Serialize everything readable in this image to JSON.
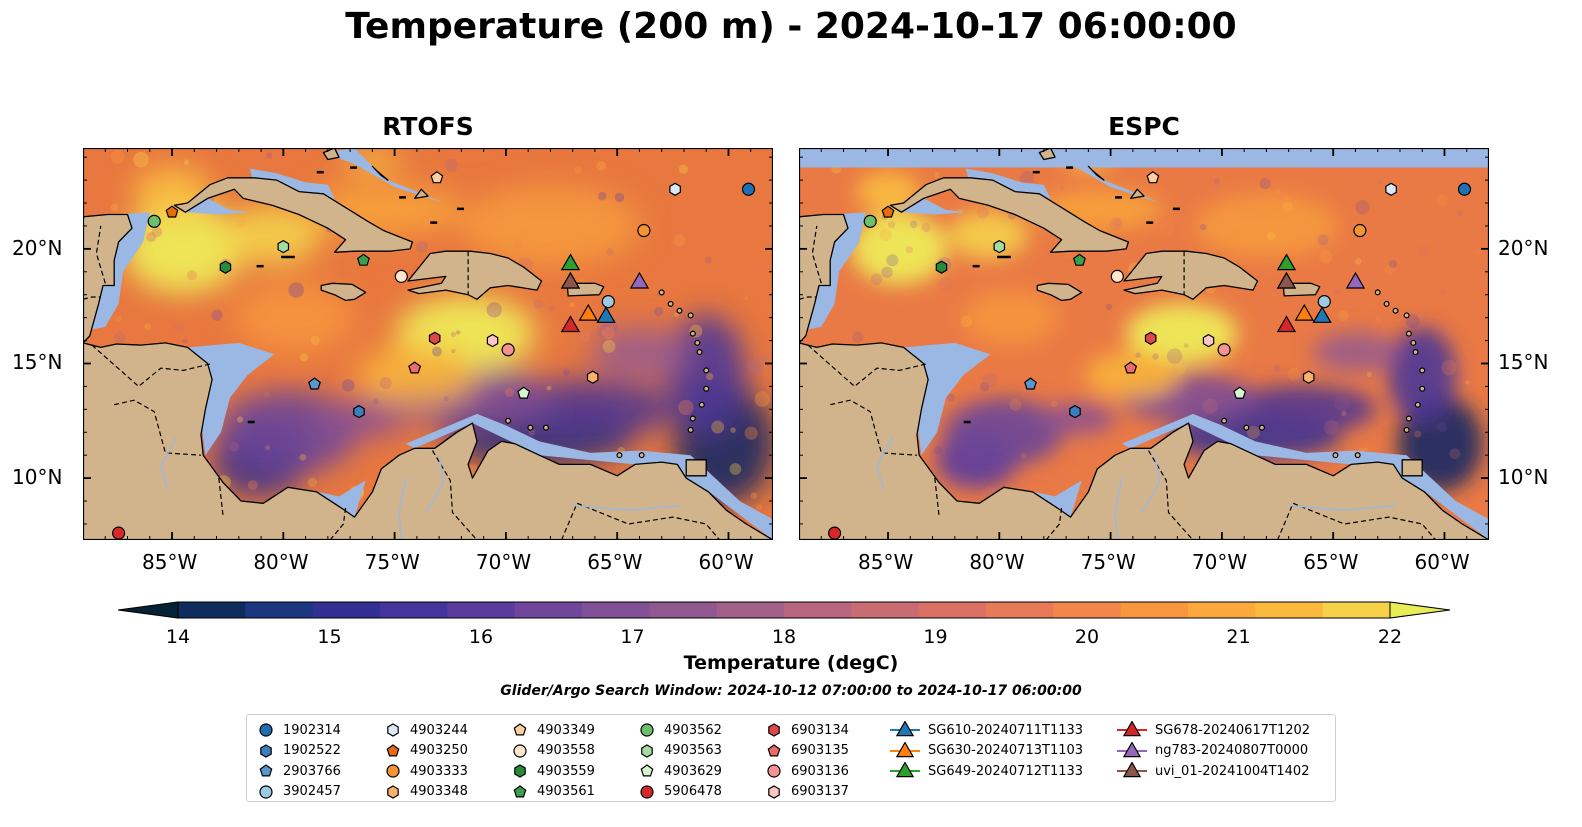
{
  "title": "Temperature (200 m) - 2024-10-17 06:00:00",
  "panels": [
    {
      "title": "RTOFS",
      "model": "rtofs"
    },
    {
      "title": "ESPC",
      "model": "espc"
    }
  ],
  "axes": {
    "lon_ticks": [
      "85°W",
      "80°W",
      "75°W",
      "70°W",
      "65°W",
      "60°W"
    ],
    "lat_ticks": [
      "20°N",
      "15°N",
      "10°N"
    ],
    "lon_range": [
      -89,
      -58
    ],
    "lat_range": [
      7.3,
      24.4
    ]
  },
  "colorbar": {
    "label": "Temperature (degC)",
    "ticks": [
      "14",
      "15",
      "16",
      "17",
      "18",
      "19",
      "20",
      "21",
      "22"
    ],
    "min": 14,
    "max": 22,
    "extend": "both",
    "colors": [
      "#062035",
      "#0e2d5e",
      "#1d3680",
      "#312f92",
      "#45349c",
      "#5a3c9e",
      "#6f469b",
      "#804f95",
      "#91578f",
      "#a25f87",
      "#b7667e",
      "#c96b72",
      "#da7066",
      "#e77a57",
      "#f38749",
      "#f9973f",
      "#fba83c",
      "#fbba3e",
      "#f6d149",
      "#e7ec57"
    ]
  },
  "search_window": "Glider/Argo Search Window: 2024-10-12 07:00:00 to 2024-10-17 06:00:00",
  "legend": [
    {
      "label": "1902314",
      "marker": "circle",
      "color": "#1f6fb5"
    },
    {
      "label": "1902522",
      "marker": "hexagon",
      "color": "#3d7fbe"
    },
    {
      "label": "2903766",
      "marker": "pentagon",
      "color": "#5a96cc"
    },
    {
      "label": "3902457",
      "marker": "circle",
      "color": "#9ecae1"
    },
    {
      "label": "4903244",
      "marker": "hexagon",
      "color": "#dbe9f6"
    },
    {
      "label": "4903250",
      "marker": "pentagon",
      "color": "#e86b12"
    },
    {
      "label": "4903333",
      "marker": "circle",
      "color": "#f69333"
    },
    {
      "label": "4903348",
      "marker": "hexagon",
      "color": "#fbb06b"
    },
    {
      "label": "4903349",
      "marker": "pentagon",
      "color": "#fdd0a2"
    },
    {
      "label": "4903558",
      "marker": "circle",
      "color": "#fee6ce"
    },
    {
      "label": "4903559",
      "marker": "hexagon",
      "color": "#278b3a"
    },
    {
      "label": "4903561",
      "marker": "pentagon",
      "color": "#3aa04d"
    },
    {
      "label": "4903562",
      "marker": "circle",
      "color": "#6cc06b"
    },
    {
      "label": "4903563",
      "marker": "hexagon",
      "color": "#a6dca0"
    },
    {
      "label": "4903629",
      "marker": "pentagon",
      "color": "#d6f5d0"
    },
    {
      "label": "5906478",
      "marker": "circle",
      "color": "#d62828"
    },
    {
      "label": "6903134",
      "marker": "hexagon",
      "color": "#e04848"
    },
    {
      "label": "6903135",
      "marker": "pentagon",
      "color": "#ec6a6a"
    },
    {
      "label": "6903136",
      "marker": "circle",
      "color": "#f59393"
    },
    {
      "label": "6903137",
      "marker": "hexagon",
      "color": "#fcc6c6"
    },
    {
      "label": "SG610-20240711T1133",
      "marker": "triangle-line",
      "color": "#1f77b4"
    },
    {
      "label": "SG630-20240713T1103",
      "marker": "triangle-line",
      "color": "#ff7f0e"
    },
    {
      "label": "SG649-20240712T1133",
      "marker": "triangle-line",
      "color": "#2ca02c"
    },
    {
      "label": "SG678-20240617T1202",
      "marker": "triangle-line",
      "color": "#d62728"
    },
    {
      "label": "ng783-20240807T0000",
      "marker": "triangle-line",
      "color": "#9467bd"
    },
    {
      "label": "uvi_01-20241004T1402",
      "marker": "triangle-line",
      "color": "#8c564b"
    }
  ],
  "observations": [
    {
      "id": "1902314",
      "lon": -59.1,
      "lat": 22.6
    },
    {
      "id": "4903244",
      "lon": -62.4,
      "lat": 22.6
    },
    {
      "id": "4903349",
      "lon": -73.1,
      "lat": 23.1
    },
    {
      "id": "4903562",
      "lon": -85.8,
      "lat": 21.2
    },
    {
      "id": "4903250",
      "lon": -85.0,
      "lat": 21.6
    },
    {
      "id": "4903563",
      "lon": -80.0,
      "lat": 20.1
    },
    {
      "id": "4903559",
      "lon": -82.6,
      "lat": 19.2
    },
    {
      "id": "4903561",
      "lon": -76.4,
      "lat": 19.5
    },
    {
      "id": "4903558",
      "lon": -74.7,
      "lat": 18.8
    },
    {
      "id": "4903333",
      "lon": -63.8,
      "lat": 20.8
    },
    {
      "id": "3902457",
      "lon": -65.4,
      "lat": 17.7
    },
    {
      "id": "6903134",
      "lon": -73.2,
      "lat": 16.1
    },
    {
      "id": "6903137",
      "lon": -70.6,
      "lat": 16.0
    },
    {
      "id": "6903136",
      "lon": -69.9,
      "lat": 15.6
    },
    {
      "id": "6903135",
      "lon": -74.1,
      "lat": 14.8
    },
    {
      "id": "4903348",
      "lon": -66.1,
      "lat": 14.4
    },
    {
      "id": "4903629",
      "lon": -69.2,
      "lat": 13.7
    },
    {
      "id": "2903766",
      "lon": -78.6,
      "lat": 14.1
    },
    {
      "id": "1902522",
      "lon": -76.6,
      "lat": 12.9
    },
    {
      "id": "5906478",
      "lon": -87.4,
      "lat": 7.6
    },
    {
      "id": "SG649-20240712T1133",
      "lon": -67.1,
      "lat": 19.4
    },
    {
      "id": "SG678-20240617T1202",
      "lon": -67.1,
      "lat": 18.6
    },
    {
      "id": "uvi_01-20241004T1402",
      "lon": -67.1,
      "lat": 18.6
    },
    {
      "id": "ng783-20240807T0000",
      "lon": -64.0,
      "lat": 18.6
    },
    {
      "id": "SG630-20240713T1103",
      "lon": -66.3,
      "lat": 17.2
    },
    {
      "id": "SG610-20240711T1133",
      "lon": -65.5,
      "lat": 17.1
    },
    {
      "id": "SG678-20240617T1202",
      "lon": -67.1,
      "lat": 16.7
    }
  ]
}
